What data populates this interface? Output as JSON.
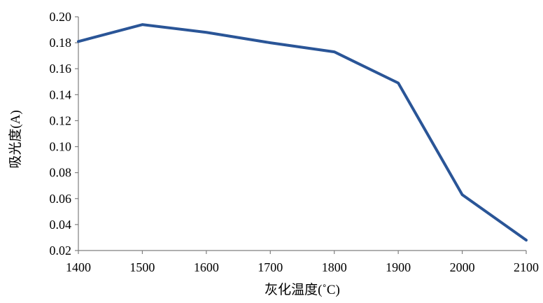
{
  "chart_data": {
    "type": "line",
    "title": "",
    "xlabel": "灰化温度(˚C)",
    "ylabel": "吸光度(A)",
    "x": [
      1400,
      1500,
      1600,
      1700,
      1800,
      1900,
      2000,
      2100
    ],
    "series": [
      {
        "values": [
          0.181,
          0.194,
          0.188,
          0.18,
          0.173,
          0.149,
          0.063,
          0.028
        ],
        "color": "#2A5597"
      }
    ],
    "xlim": [
      1400,
      2100
    ],
    "ylim": [
      0.02,
      0.2
    ],
    "x_ticks": [
      "1400",
      "1500",
      "1600",
      "1700",
      "1800",
      "1900",
      "2000",
      "2100"
    ],
    "y_ticks": [
      "0.02",
      "0.04",
      "0.06",
      "0.08",
      "0.10",
      "0.12",
      "0.14",
      "0.16",
      "0.18",
      "0.20"
    ],
    "grid": false,
    "legend": "none",
    "axis_color": "#7F7F7F"
  }
}
